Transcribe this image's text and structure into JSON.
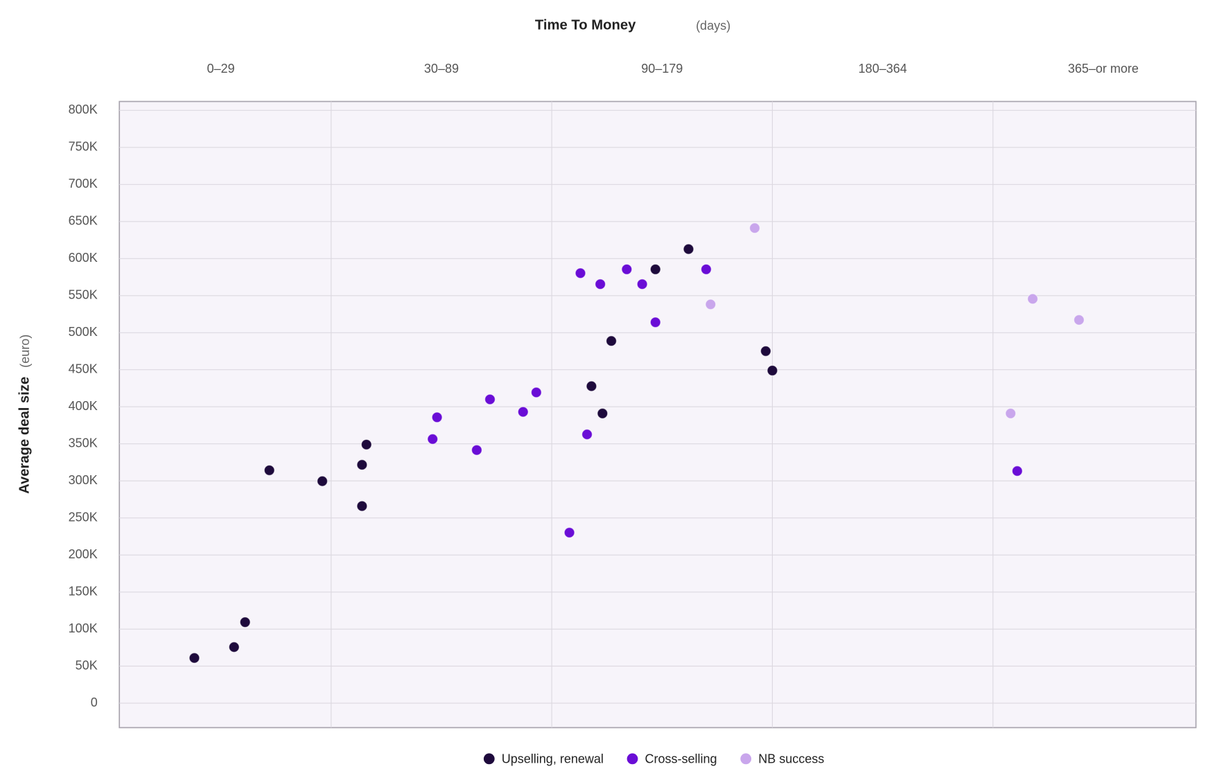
{
  "chart_data": {
    "type": "scatter",
    "title": "Time To Money",
    "title_unit": "(days)",
    "y_label": "Average deal size",
    "y_unit": "(euro)",
    "categories": [
      "0–29",
      "30–89",
      "90–179",
      "180–364",
      "365–or more"
    ],
    "xlim": [
      0.04,
      4.92
    ],
    "ylim": [
      -33000,
      812000
    ],
    "yticks": [
      {
        "value": 0,
        "label": "0"
      },
      {
        "value": 50000,
        "label": "50K"
      },
      {
        "value": 100000,
        "label": "100K"
      },
      {
        "value": 150000,
        "label": "150K"
      },
      {
        "value": 200000,
        "label": "200K"
      },
      {
        "value": 250000,
        "label": "250K"
      },
      {
        "value": 300000,
        "label": "300K"
      },
      {
        "value": 350000,
        "label": "350K"
      },
      {
        "value": 400000,
        "label": "400K"
      },
      {
        "value": 450000,
        "label": "450K"
      },
      {
        "value": 500000,
        "label": "500K"
      },
      {
        "value": 550000,
        "label": "550K"
      },
      {
        "value": 600000,
        "label": "600K"
      },
      {
        "value": 650000,
        "label": "650K"
      },
      {
        "value": 700000,
        "label": "700K"
      },
      {
        "value": 750000,
        "label": "750K"
      },
      {
        "value": 800000,
        "label": "800K"
      }
    ],
    "grid": true,
    "legend": "bottom",
    "series": [
      {
        "name": "Upselling, renewal",
        "color": "#1e0a3c",
        "x": [
          0.38,
          0.56,
          0.61,
          0.72,
          0.96,
          1.14,
          1.16,
          1.14,
          2.27,
          2.18,
          2.23,
          2.47,
          2.62,
          2.97,
          3.0
        ],
        "values": [
          61000,
          75700,
          109300,
          314300,
          299600,
          321700,
          349000,
          266000,
          488800,
          427800,
          391000,
          585500,
          612800,
          475100,
          448900
        ]
      },
      {
        "name": "Cross-selling",
        "color": "#6a0dd6",
        "x": [
          2.13,
          2.22,
          2.34,
          2.41,
          2.7,
          2.47,
          1.93,
          1.72,
          1.87,
          1.48,
          1.46,
          1.66,
          2.16,
          2.08,
          4.11
        ],
        "values": [
          580300,
          565500,
          585500,
          565500,
          585500,
          514000,
          419400,
          410000,
          393100,
          385800,
          356400,
          341600,
          362700,
          230200,
          313300
        ]
      },
      {
        "name": "NB success",
        "color": "#c9a6ec",
        "x": [
          2.92,
          2.72,
          4.18,
          4.39,
          4.08
        ],
        "values": [
          641200,
          538200,
          545600,
          517200,
          391000
        ]
      }
    ]
  }
}
